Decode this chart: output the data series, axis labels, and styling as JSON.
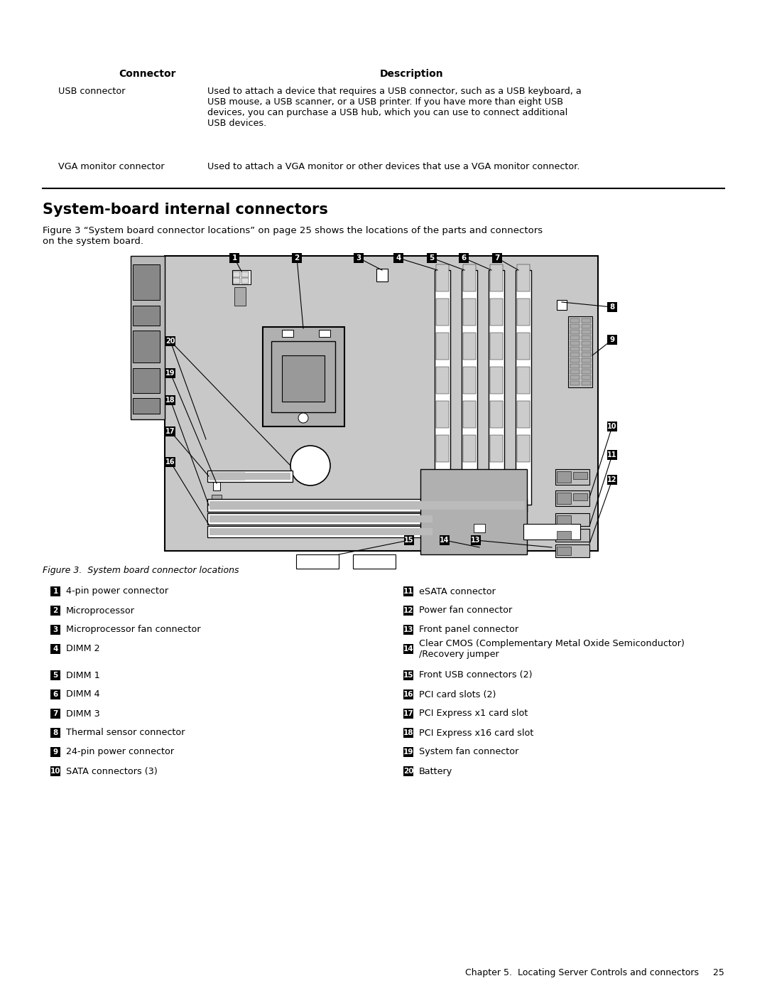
{
  "page_bg": "#ffffff",
  "header_table": {
    "col1_header": "Connector",
    "col2_header": "Description",
    "rows": [
      {
        "connector": "USB connector",
        "description": "Used to attach a device that requires a USB connector, such as a USB keyboard, a\nUSB mouse, a USB scanner, or a USB printer. If you have more than eight USB\ndevices, you can purchase a USB hub, which you can use to connect additional\nUSB devices."
      },
      {
        "connector": "VGA monitor connector",
        "description": "Used to attach a VGA monitor or other devices that use a VGA monitor connector."
      }
    ]
  },
  "section_title": "System-board internal connectors",
  "section_body": "Figure 3 “System board connector locations” on page 25 shows the locations of the parts and connectors\non the system board.",
  "figure_caption": "Figure 3.  System board connector locations",
  "legend_items_left": [
    {
      "num": "1",
      "text": "4-pin power connector"
    },
    {
      "num": "2",
      "text": "Microprocessor"
    },
    {
      "num": "3",
      "text": "Microprocessor fan connector"
    },
    {
      "num": "4",
      "text": "DIMM 2"
    },
    {
      "num": "5",
      "text": "DIMM 1"
    },
    {
      "num": "6",
      "text": "DIMM 4"
    },
    {
      "num": "7",
      "text": "DIMM 3"
    },
    {
      "num": "8",
      "text": "Thermal sensor connector"
    },
    {
      "num": "9",
      "text": "24-pin power connector"
    },
    {
      "num": "10",
      "text": "SATA connectors (3)"
    }
  ],
  "legend_items_right": [
    {
      "num": "11",
      "text": "eSATA connector"
    },
    {
      "num": "12",
      "text": "Power fan connector"
    },
    {
      "num": "13",
      "text": "Front panel connector"
    },
    {
      "num": "14",
      "text": "Clear CMOS (Complementary Metal Oxide Semiconductor)\n/Recovery jumper"
    },
    {
      "num": "15",
      "text": "Front USB connectors (2)"
    },
    {
      "num": "16",
      "text": "PCI card slots (2)"
    },
    {
      "num": "17",
      "text": "PCI Express x1 card slot"
    },
    {
      "num": "18",
      "text": "PCI Express x16 card slot"
    },
    {
      "num": "19",
      "text": "System fan connector"
    },
    {
      "num": "20",
      "text": "Battery"
    }
  ],
  "footer_text": "Chapter 5.  Locating Server Controls and connectors     25"
}
